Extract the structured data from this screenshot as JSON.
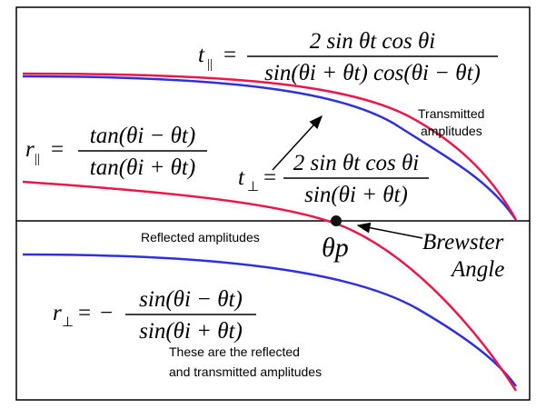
{
  "formulas": [
    {
      "lhs": "t",
      "lhs_sub": "||",
      "numerator": "2 sin θt cos θi",
      "denominator": "sin(θi + θt) cos(θi − θt)"
    },
    {
      "lhs": "r",
      "lhs_sub": "||",
      "numerator": "tan(θi − θt)",
      "denominator": "tan(θi + θt)"
    },
    {
      "lhs": "t",
      "lhs_sub": "⊥",
      "numerator": "2 sin θt cos θi",
      "denominator": "sin(θi + θt)"
    },
    {
      "lhs": "r",
      "lhs_sub": "⊥",
      "sign": "−",
      "numerator": "sin(θi − θt)",
      "denominator": "sin(θi + θt)"
    }
  ],
  "labels": {
    "transmitted": [
      "Transmitted",
      "amplitudes"
    ],
    "reflected": "Reflected amplitudes",
    "theta_p": "θp",
    "brewster": [
      "Brewster",
      "Angle"
    ],
    "note": [
      "These are the reflected",
      "and transmitted amplitudes"
    ]
  }
}
